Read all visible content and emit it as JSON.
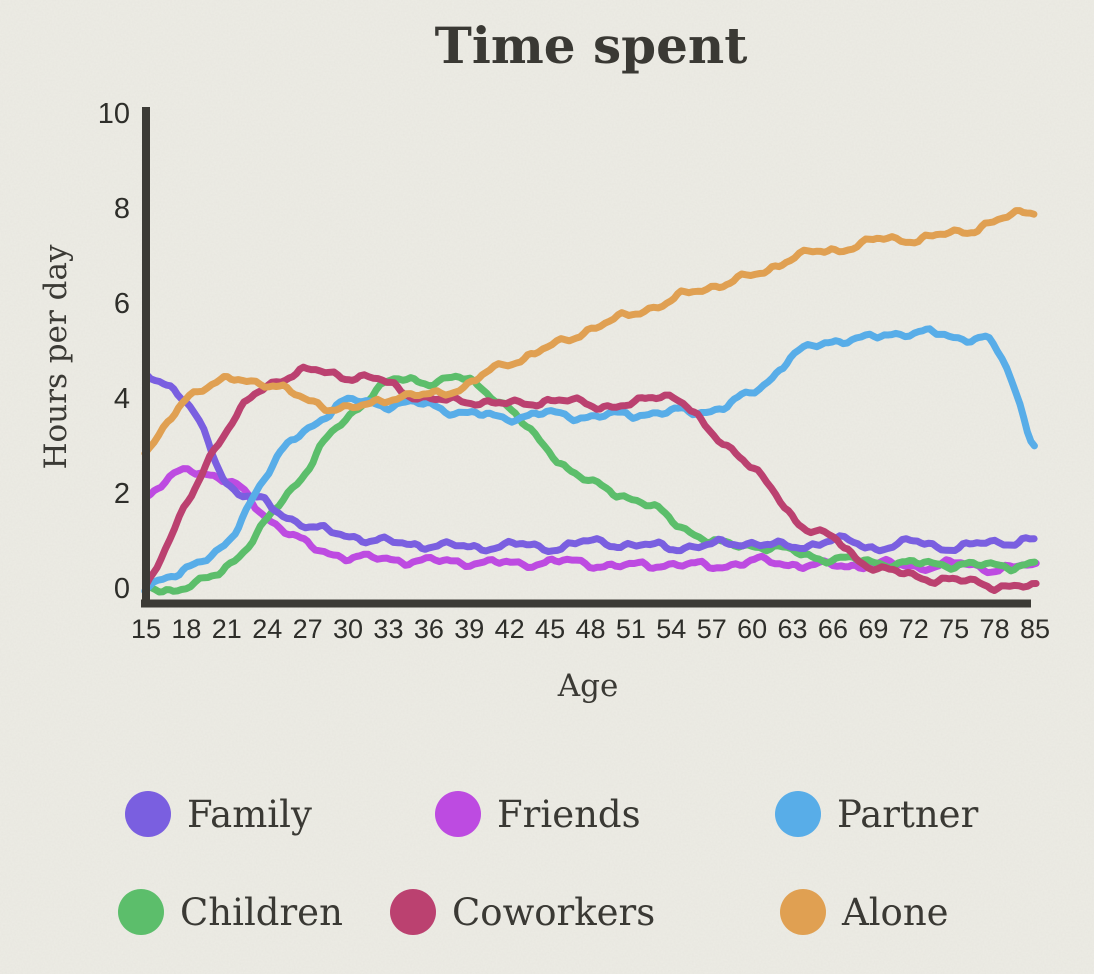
{
  "page": {
    "background_color": "#edece5",
    "text_color": "#3a3934",
    "axis_color": "#3c3b36"
  },
  "chart_data": {
    "type": "line",
    "title": "Time spent",
    "xlabel": "Age",
    "ylabel": "Hours per day",
    "ages": [
      15,
      18,
      21,
      24,
      27,
      30,
      33,
      36,
      39,
      42,
      45,
      48,
      51,
      54,
      57,
      60,
      63,
      66,
      69,
      72,
      75,
      78,
      85
    ],
    "x_tick_labels": [
      "15",
      "18",
      "21",
      "24",
      "27",
      "30",
      "33",
      "36",
      "39",
      "42",
      "45",
      "48",
      "51",
      "54",
      "57",
      "60",
      "63",
      "66",
      "69",
      "72",
      "75",
      "78",
      "85"
    ],
    "y_ticks": [
      0,
      2,
      4,
      6,
      8,
      10
    ],
    "ylim": [
      0,
      10
    ],
    "grid": false,
    "line_style": "hand-drawn wobbly",
    "legend_position": "bottom",
    "legend_rows": [
      [
        "Family",
        "Friends",
        "Partner"
      ],
      [
        "Children",
        "Coworkers",
        "Alone"
      ]
    ],
    "series": [
      {
        "name": "Family",
        "color": "#7a5fe0",
        "values": [
          4.55,
          3.95,
          2.3,
          1.8,
          1.35,
          1.15,
          1.0,
          0.95,
          0.9,
          0.95,
          0.9,
          1.0,
          0.95,
          0.9,
          0.95,
          1.0,
          0.9,
          1.05,
          0.9,
          1.0,
          0.9,
          1.0,
          1.05
        ]
      },
      {
        "name": "Friends",
        "color": "#bd4be1",
        "values": [
          2.0,
          2.5,
          2.3,
          1.55,
          0.95,
          0.7,
          0.65,
          0.6,
          0.6,
          0.55,
          0.6,
          0.55,
          0.5,
          0.55,
          0.5,
          0.6,
          0.55,
          0.5,
          0.55,
          0.5,
          0.55,
          0.45,
          0.5
        ]
      },
      {
        "name": "Partner",
        "color": "#58ade8",
        "values": [
          0.0,
          0.5,
          0.95,
          2.5,
          3.4,
          3.95,
          3.9,
          3.9,
          3.7,
          3.65,
          3.7,
          3.65,
          3.7,
          3.75,
          3.8,
          4.15,
          4.9,
          5.25,
          5.3,
          5.45,
          5.3,
          5.15,
          3.1
        ]
      },
      {
        "name": "Children",
        "color": "#5cbe6b",
        "values": [
          0.05,
          0.05,
          0.5,
          1.45,
          2.6,
          3.65,
          4.35,
          4.4,
          4.4,
          3.8,
          2.9,
          2.25,
          1.95,
          1.5,
          1.0,
          0.95,
          0.8,
          0.65,
          0.6,
          0.55,
          0.55,
          0.5,
          0.55
        ]
      },
      {
        "name": "Coworkers",
        "color": "#bb4170",
        "values": [
          0.15,
          1.8,
          3.4,
          4.3,
          4.6,
          4.5,
          4.35,
          4.0,
          4.0,
          3.9,
          4.0,
          3.9,
          3.9,
          4.1,
          3.3,
          2.6,
          1.55,
          1.05,
          0.5,
          0.3,
          0.2,
          0.1,
          0.05
        ]
      },
      {
        "name": "Alone",
        "color": "#e0a052",
        "values": [
          2.9,
          4.05,
          4.4,
          4.35,
          4.0,
          3.8,
          4.05,
          4.1,
          4.35,
          4.8,
          5.1,
          5.5,
          5.8,
          6.1,
          6.4,
          6.6,
          7.0,
          7.15,
          7.35,
          7.4,
          7.5,
          7.75,
          8.0
        ]
      }
    ]
  }
}
